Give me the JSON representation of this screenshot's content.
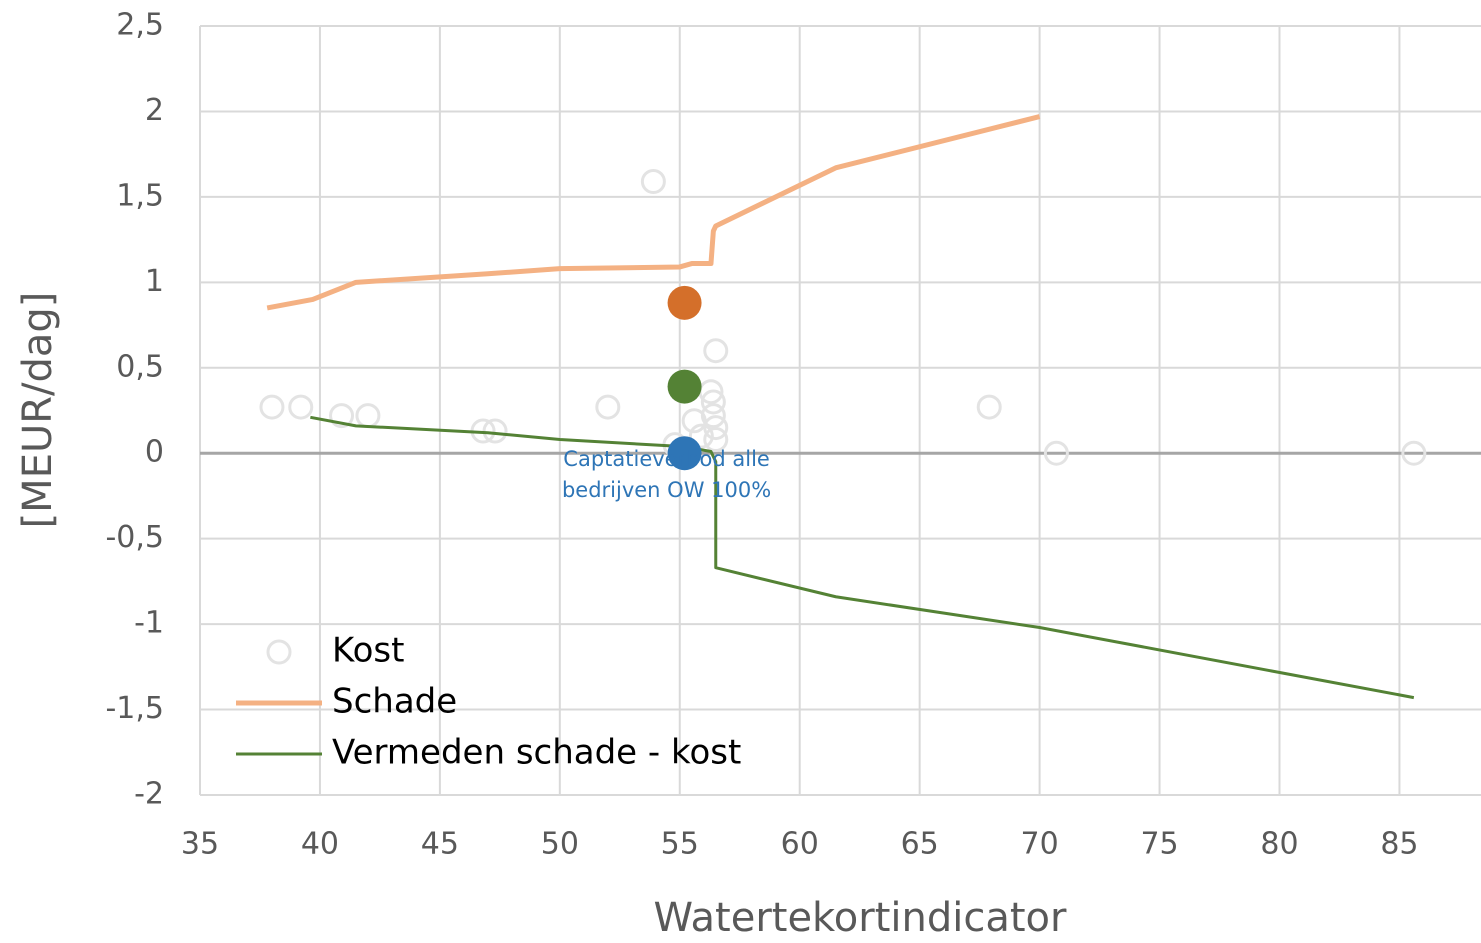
{
  "chart_data": {
    "type": "scatter-line",
    "xlabel": "Watertekortindicator",
    "ylabel": "[MEUR/dag]",
    "xlim": [
      35,
      88.4
    ],
    "ylim": [
      -2,
      2.5
    ],
    "xticks": [
      35,
      40,
      45,
      50,
      55,
      60,
      65,
      70,
      75,
      80,
      85
    ],
    "yticks": [
      {
        "value": 2.5,
        "label": "2,5"
      },
      2,
      {
        "value": 1.5,
        "label": "1,5"
      },
      1,
      {
        "value": 0.5,
        "label": "0,5"
      },
      0,
      {
        "value": -0.5,
        "label": "-0,5"
      },
      -1,
      {
        "value": -1.5,
        "label": "-1,5"
      },
      -2
    ],
    "grid": true,
    "legend": "lower left",
    "series": [
      {
        "name": "Kost",
        "kind": "scatter",
        "color": "#e3e3e3",
        "x": [
          38,
          39.2,
          40.9,
          42,
          46.8,
          47.3,
          52,
          53.9,
          54.8,
          55.6,
          55.9,
          56.3,
          56.4,
          56.4,
          56.5,
          56.5,
          56.5,
          67.9,
          70.7,
          85.6
        ],
        "values": [
          0.27,
          0.27,
          0.22,
          0.22,
          0.13,
          0.13,
          0.27,
          1.59,
          0.05,
          0.19,
          0.1,
          0.36,
          0.3,
          0.22,
          0.15,
          0.08,
          0.6,
          0.27,
          0,
          0
        ]
      },
      {
        "name": "Schade",
        "kind": "line",
        "color": "#f4b183",
        "x": [
          37.8,
          39.7,
          41.5,
          47,
          50,
          55,
          55.5,
          56.3,
          56.4,
          56.5,
          61.5,
          70
        ],
        "values": [
          0.85,
          0.9,
          1.0,
          1.05,
          1.08,
          1.09,
          1.11,
          1.11,
          1.3,
          1.33,
          1.67,
          1.97
        ]
      },
      {
        "name": "Vermeden schade - kost",
        "kind": "line",
        "color": "#548235",
        "x": [
          39.6,
          41.5,
          47,
          50,
          55,
          55.5,
          56.3,
          56.5,
          56.5,
          61.5,
          70,
          85.6
        ],
        "values": [
          0.21,
          0.16,
          0.12,
          0.08,
          0.04,
          0.03,
          0.01,
          -0.05,
          -0.67,
          -0.84,
          -1.02,
          -1.43
        ]
      }
    ],
    "highlights": [
      {
        "x": 55.2,
        "value": 0.88,
        "color": "#d46f2a"
      },
      {
        "x": 55.2,
        "value": 0.39,
        "color": "#548235"
      },
      {
        "x": 55.2,
        "value": 0,
        "color": "#2e75b6"
      }
    ],
    "annotation": [
      "Captatieverbod alle",
      "bedrijven OW 100%"
    ]
  }
}
